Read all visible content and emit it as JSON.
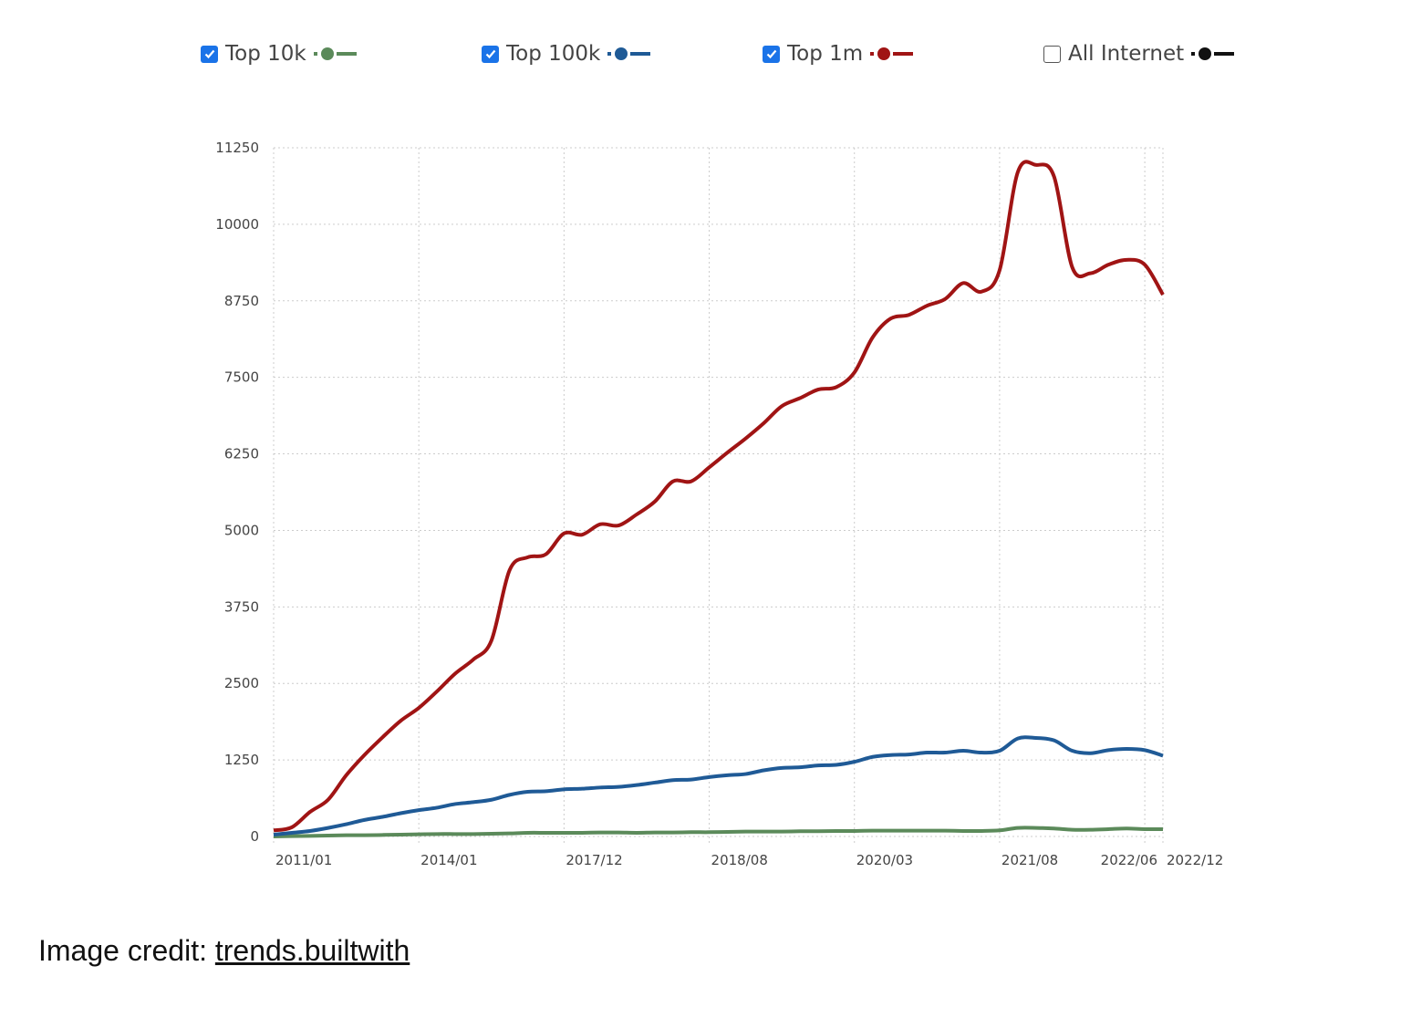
{
  "legend": [
    {
      "label": "Top 10k",
      "checked": true,
      "color": "#5b8a5a"
    },
    {
      "label": "Top 100k",
      "checked": true,
      "color": "#1f5a96"
    },
    {
      "label": "Top 1m",
      "checked": true,
      "color": "#a01414"
    },
    {
      "label": "All Internet",
      "checked": false,
      "color": "#111111"
    }
  ],
  "caption": {
    "prefix": "Image credit: ",
    "link": "trends.builtwith"
  },
  "chart_data": {
    "type": "line",
    "grid": true,
    "ylim": [
      0,
      11250
    ],
    "y_ticks": [
      0,
      1250,
      2500,
      3750,
      5000,
      6250,
      7500,
      8750,
      10000,
      11250
    ],
    "x_ticks": [
      {
        "index": 0,
        "label": "2011/01"
      },
      {
        "index": 8,
        "label": "2014/01"
      },
      {
        "index": 16,
        "label": "2017/12"
      },
      {
        "index": 24,
        "label": "2018/08"
      },
      {
        "index": 32,
        "label": "2020/03"
      },
      {
        "index": 40,
        "label": "2021/08"
      },
      {
        "index": 48,
        "label": "2022/06"
      },
      {
        "index": 49,
        "label": "2022/12"
      }
    ],
    "series": [
      {
        "name": "Top 10k",
        "color": "#5b8a5a",
        "values": [
          0,
          5,
          10,
          15,
          20,
          20,
          25,
          30,
          35,
          40,
          40,
          40,
          45,
          50,
          60,
          60,
          60,
          60,
          65,
          65,
          60,
          65,
          65,
          70,
          70,
          75,
          80,
          80,
          80,
          85,
          85,
          90,
          90,
          95,
          95,
          95,
          95,
          95,
          90,
          90,
          100,
          140,
          140,
          130,
          110,
          110,
          120,
          130,
          120,
          120
        ]
      },
      {
        "name": "Top 100k",
        "color": "#1f5a96",
        "values": [
          30,
          60,
          90,
          140,
          200,
          270,
          320,
          380,
          430,
          470,
          530,
          560,
          600,
          680,
          730,
          740,
          770,
          780,
          800,
          810,
          840,
          880,
          920,
          930,
          970,
          1000,
          1020,
          1080,
          1120,
          1130,
          1160,
          1170,
          1220,
          1300,
          1330,
          1340,
          1370,
          1370,
          1400,
          1370,
          1400,
          1600,
          1610,
          1570,
          1400,
          1360,
          1410,
          1430,
          1410,
          1320
        ]
      },
      {
        "name": "Top 1m",
        "color": "#a01414",
        "values": [
          100,
          150,
          400,
          600,
          1000,
          1330,
          1620,
          1890,
          2100,
          2370,
          2660,
          2890,
          3200,
          4350,
          4560,
          4610,
          4950,
          4930,
          5100,
          5080,
          5260,
          5470,
          5800,
          5800,
          6030,
          6270,
          6500,
          6750,
          7030,
          7160,
          7300,
          7340,
          7580,
          8150,
          8460,
          8520,
          8670,
          8780,
          9040,
          8900,
          9250,
          10850,
          10970,
          10780,
          9300,
          9200,
          9340,
          9420,
          9340,
          8850
        ]
      }
    ]
  }
}
